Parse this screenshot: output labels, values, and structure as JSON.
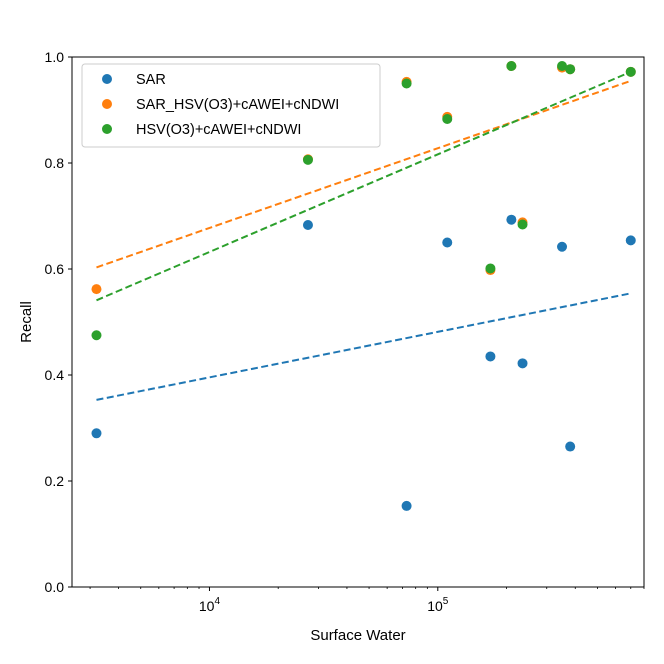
{
  "chart_data": {
    "type": "scatter",
    "title": "",
    "xlabel": "Surface Water",
    "ylabel": "Recall",
    "xscale": "log",
    "xlim": [
      2500,
      800000
    ],
    "ylim": [
      0.0,
      1.0
    ],
    "grid": false,
    "legend_position": "top-left",
    "x_ticks": [
      {
        "value": 10000,
        "base": "10",
        "exp": "4"
      },
      {
        "value": 100000,
        "base": "10",
        "exp": "5"
      }
    ],
    "y_ticks": [
      {
        "value": 0.0,
        "label": "0.0"
      },
      {
        "value": 0.2,
        "label": "0.2"
      },
      {
        "value": 0.4,
        "label": "0.4"
      },
      {
        "value": 0.6,
        "label": "0.6"
      },
      {
        "value": 0.8,
        "label": "0.8"
      },
      {
        "value": 1.0,
        "label": "1.0"
      }
    ],
    "series": [
      {
        "name": "SAR",
        "color": "#1f77b4",
        "x": [
          3200,
          27000,
          73000,
          110000,
          170000,
          210000,
          235000,
          350000,
          380000,
          700000
        ],
        "y": [
          0.29,
          0.683,
          0.153,
          0.65,
          0.435,
          0.693,
          0.422,
          0.642,
          0.265,
          0.654
        ],
        "trend": {
          "x": [
            3200,
            700000
          ],
          "y": [
            0.353,
            0.554
          ]
        }
      },
      {
        "name": "SAR_HSV(O3)+cAWEI+cNDWI",
        "color": "#ff7f0e",
        "x": [
          3200,
          27000,
          73000,
          110000,
          170000,
          210000,
          235000,
          350000,
          380000,
          700000
        ],
        "y": [
          0.562,
          0.807,
          0.953,
          0.887,
          0.598,
          0.983,
          0.688,
          0.98,
          0.977,
          0.972
        ],
        "trend": {
          "x": [
            3200,
            700000
          ],
          "y": [
            0.603,
            0.955
          ]
        }
      },
      {
        "name": "HSV(O3)+cAWEI+cNDWI",
        "color": "#2ca02c",
        "x": [
          3200,
          27000,
          73000,
          110000,
          170000,
          210000,
          235000,
          350000,
          380000,
          700000
        ],
        "y": [
          0.475,
          0.806,
          0.95,
          0.883,
          0.601,
          0.983,
          0.684,
          0.983,
          0.977,
          0.972
        ],
        "trend": {
          "x": [
            3200,
            700000
          ],
          "y": [
            0.541,
            0.972
          ]
        }
      }
    ]
  }
}
